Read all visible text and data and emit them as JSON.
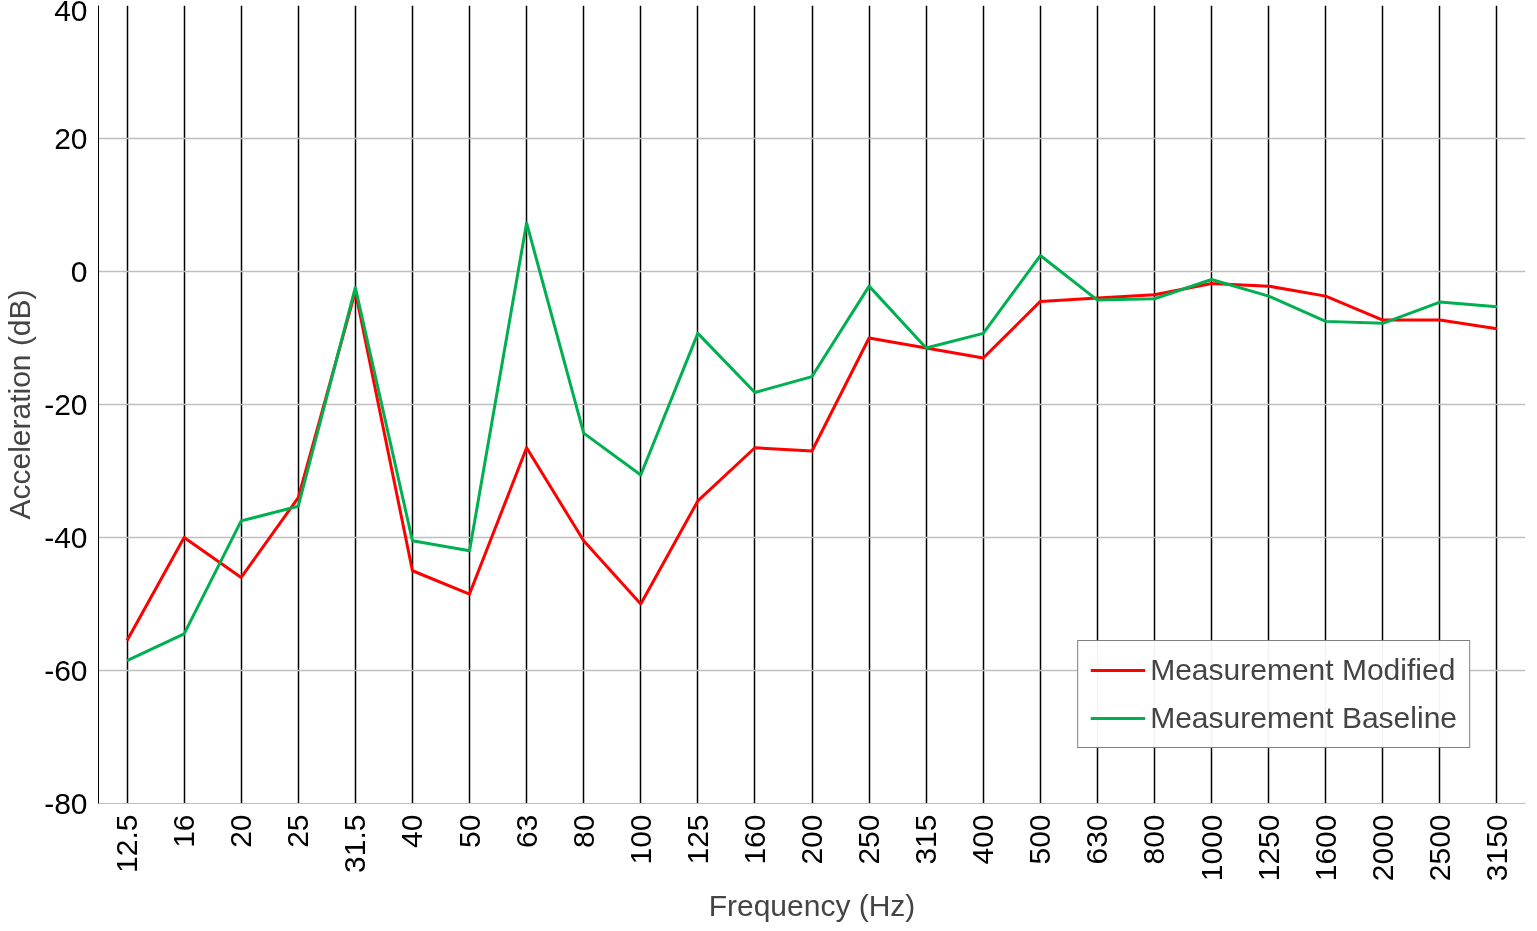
{
  "chart_data": {
    "type": "line",
    "xlabel": "Frequency (Hz)",
    "ylabel": "Acceleration (dB)",
    "categories": [
      "12.5",
      "16",
      "20",
      "25",
      "31.5",
      "40",
      "50",
      "63",
      "80",
      "100",
      "125",
      "160",
      "200",
      "250",
      "315",
      "400",
      "500",
      "630",
      "800",
      "1000",
      "1250",
      "1600",
      "2000",
      "2500",
      "3150"
    ],
    "series": [
      {
        "name": "Measurement Modified",
        "color": "#ff0000",
        "values": [
          -55.5,
          -40,
          -46,
          -34,
          -3,
          -45,
          -48.5,
          -26.5,
          -40.5,
          -50,
          -34.5,
          -26.5,
          -27,
          -10,
          -11.5,
          -13,
          -4.5,
          -4,
          -3.5,
          -1.8,
          -2.2,
          -3.7,
          -7.3,
          -7.3,
          -8.6
        ]
      },
      {
        "name": "Measurement Baseline",
        "color": "#00b050",
        "values": [
          -58.5,
          -54.5,
          -37.5,
          -35.3,
          -2.4,
          -40.5,
          -42,
          7.3,
          -24.3,
          -30.6,
          -9.3,
          -18.2,
          -15.8,
          -2.2,
          -11.5,
          -9.3,
          2.4,
          -4.3,
          -4.1,
          -1.2,
          -3.7,
          -7.5,
          -7.8,
          -4.6,
          -5.3
        ]
      }
    ],
    "ylim": [
      -80,
      40
    ],
    "yticks": [
      -80,
      -60,
      -40,
      -20,
      0,
      20,
      40
    ],
    "grid": true,
    "legend": "bottom right",
    "marker": "none",
    "line_style": "solid"
  }
}
